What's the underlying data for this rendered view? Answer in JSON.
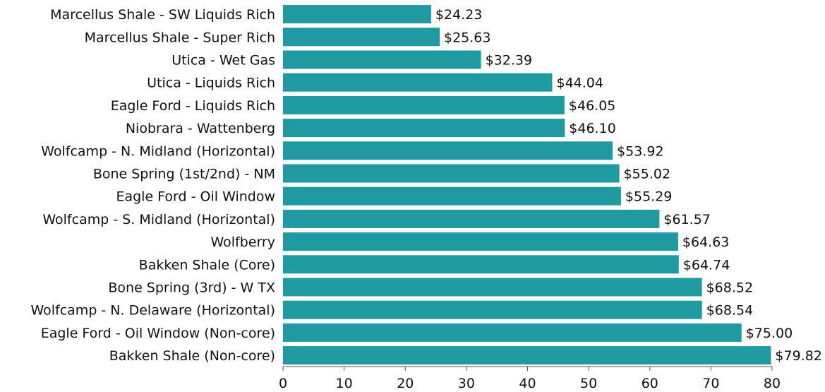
{
  "chart_data": {
    "type": "bar",
    "orientation": "horizontal",
    "title": "",
    "xlabel": "",
    "ylabel": "",
    "xlim": [
      0,
      80
    ],
    "xticks": [
      "0",
      "10",
      "20",
      "30",
      "40",
      "50",
      "60",
      "70",
      "80"
    ],
    "grid": false,
    "bar_color": "#1F9AA0",
    "categories": [
      "Marcellus Shale - SW Liquids Rich",
      "Marcellus Shale - Super Rich",
      "Utica - Wet Gas",
      "Utica - Liquids Rich",
      "Eagle Ford - Liquids Rich",
      "Niobrara - Wattenberg",
      "Wolfcamp - N. Midland (Horizontal)",
      "Bone Spring (1st/2nd) - NM",
      "Eagle Ford - Oil Window",
      "Wolfcamp - S. Midland (Horizontal)",
      "Wolfberry",
      "Bakken Shale (Core)",
      "Bone Spring (3rd) - W TX",
      "Wolfcamp - N. Delaware (Horizontal)",
      "Eagle Ford - Oil Window (Non-core)",
      "Bakken Shale (Non-core)"
    ],
    "values": [
      24.23,
      25.63,
      32.39,
      44.04,
      46.05,
      46.1,
      53.92,
      55.02,
      55.29,
      61.57,
      64.63,
      64.74,
      68.52,
      68.54,
      75.0,
      79.82
    ],
    "value_labels": [
      "$24.23",
      "$25.63",
      "$32.39",
      "$44.04",
      "$46.05",
      "$46.10",
      "$53.92",
      "$55.02",
      "$55.29",
      "$61.57",
      "$64.63",
      "$64.74",
      "$68.52",
      "$68.54",
      "$75.00",
      "$79.82"
    ]
  }
}
